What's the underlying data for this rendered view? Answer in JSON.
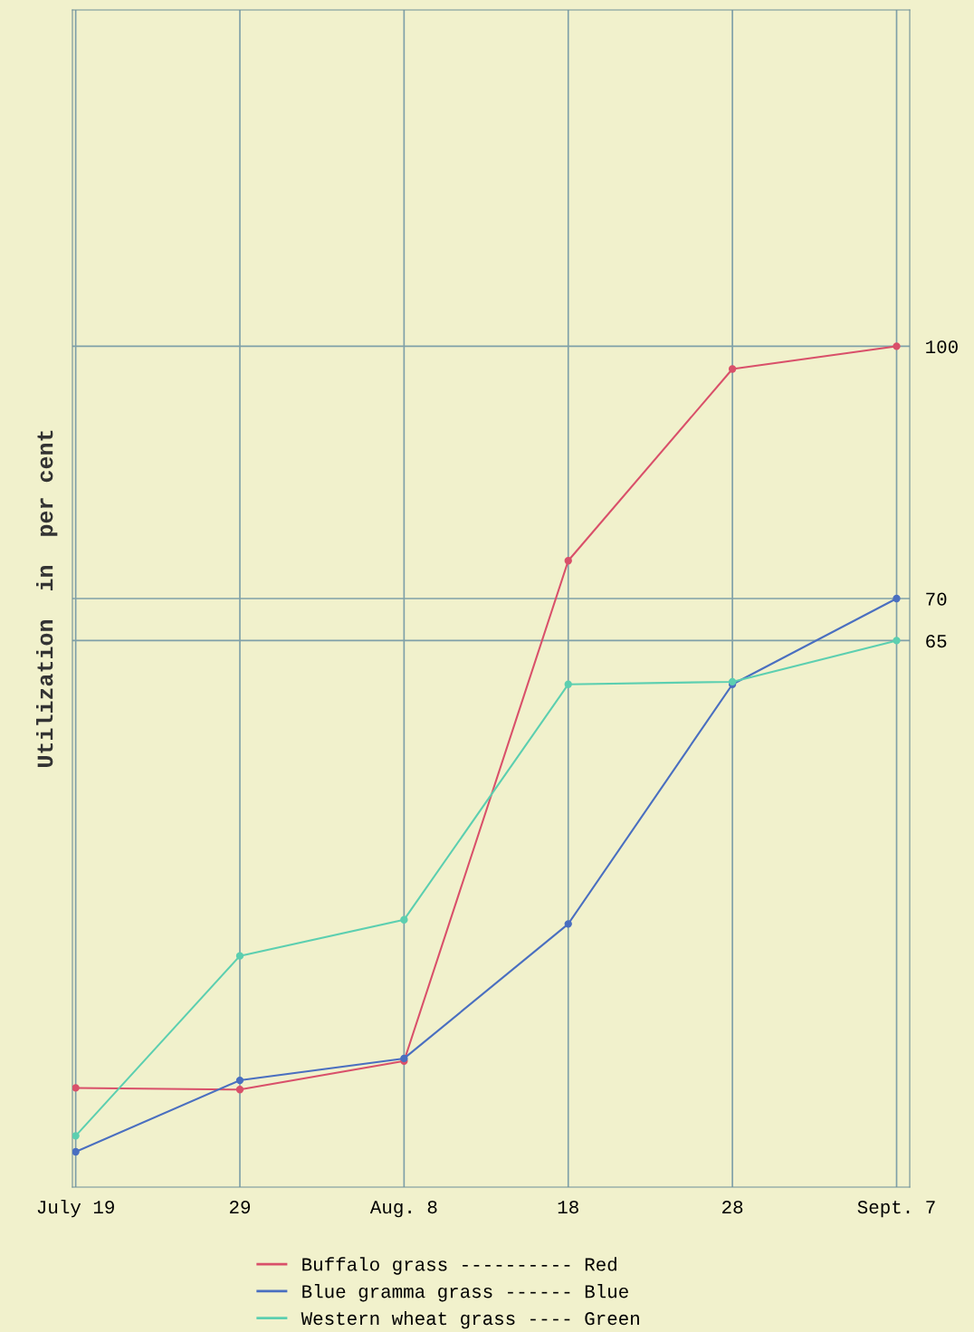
{
  "chart_data": {
    "type": "line",
    "ylabel": "Utilization  in  per cent",
    "categories": [
      "July 19",
      "29",
      "Aug. 8",
      "18",
      "28",
      "Sept. 7"
    ],
    "series": [
      {
        "name": "Buffalo grass ---------- Red",
        "color": "#d9506a",
        "values": [
          11.8,
          11.6,
          15,
          74.5,
          97.3,
          100
        ]
      },
      {
        "name": "Blue gramma grass ------ Blue",
        "color": "#4a6fc0",
        "values": [
          4.2,
          12.7,
          15.3,
          31.3,
          59.8,
          70
        ]
      },
      {
        "name": "Western wheat grass ---- Green",
        "color": "#5ccfb0",
        "values": [
          6.1,
          27.5,
          31.8,
          59.8,
          60.1,
          65
        ]
      }
    ],
    "ylim": [
      0,
      140
    ],
    "yticks": [
      65,
      70,
      100
    ],
    "grid": true,
    "legend": "bottom",
    "marker": "circle",
    "line_style": "solid"
  }
}
